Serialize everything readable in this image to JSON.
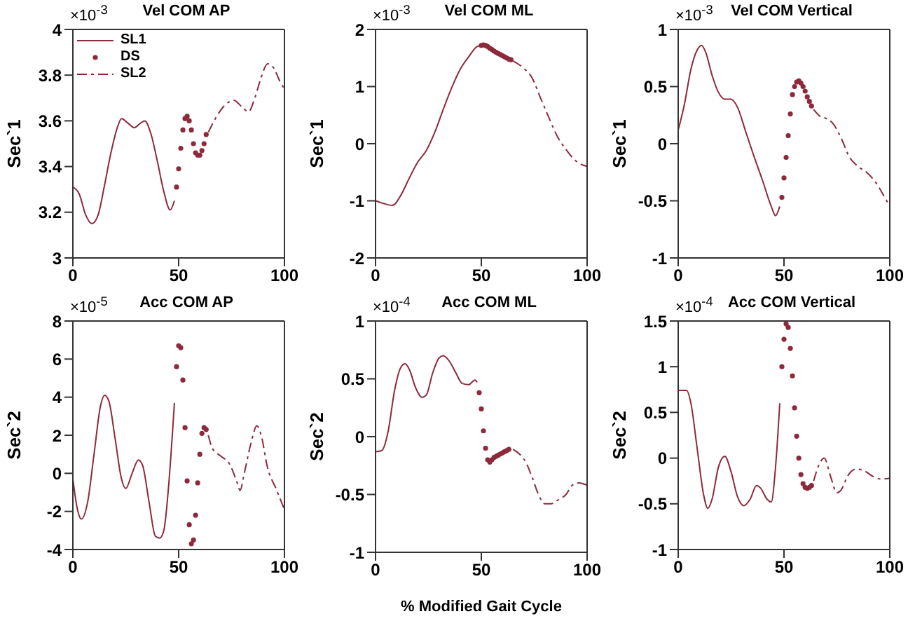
{
  "chart_data": [
    {
      "type": "line",
      "title": "Vel COM AP",
      "ylabel": "Sec`1",
      "annotations": [
        "×10$^{-3}$"
      ],
      "xlim": [
        0,
        100
      ],
      "xticks": [
        0,
        50,
        100
      ],
      "ylim": [
        3,
        4
      ],
      "yticks": [
        3,
        3.2,
        3.4,
        3.6,
        3.8,
        4
      ],
      "legend": "top left",
      "grid": false,
      "series": [
        {
          "name": "SL1",
          "type": "line",
          "color": "#8c2a3c",
          "marker": "none",
          "line_style": "solid",
          "x": [
            0,
            3,
            6,
            9,
            12,
            15,
            18,
            21,
            23,
            26,
            29,
            32,
            34,
            37,
            40,
            43,
            46,
            48
          ],
          "values": [
            3.31,
            3.28,
            3.19,
            3.15,
            3.19,
            3.32,
            3.46,
            3.57,
            3.61,
            3.59,
            3.57,
            3.59,
            3.6,
            3.54,
            3.42,
            3.29,
            3.21,
            3.25
          ]
        },
        {
          "name": "DS",
          "type": "scatter",
          "color": "#8c2a3c",
          "marker": "circle",
          "x": [
            49,
            50,
            51,
            52,
            53,
            54,
            55,
            56,
            57,
            58,
            59,
            60,
            61,
            62,
            63
          ],
          "values": [
            3.31,
            3.39,
            3.48,
            3.56,
            3.61,
            3.62,
            3.6,
            3.56,
            3.5,
            3.46,
            3.45,
            3.45,
            3.47,
            3.5,
            3.54
          ]
        },
        {
          "name": "SL2",
          "type": "line",
          "color": "#8c2a3c",
          "marker": "none",
          "line_style": "dashed",
          "x": [
            64,
            68,
            72,
            76,
            80,
            83,
            86,
            89,
            92,
            95,
            98,
            100
          ],
          "values": [
            3.55,
            3.62,
            3.67,
            3.69,
            3.66,
            3.64,
            3.7,
            3.79,
            3.85,
            3.83,
            3.77,
            3.74
          ]
        }
      ]
    },
    {
      "type": "line",
      "title": "Vel COM ML",
      "ylabel": "Sec`1",
      "annotations": [
        "×10$^{-3}$"
      ],
      "xlim": [
        0,
        100
      ],
      "xticks": [
        0,
        50,
        100
      ],
      "ylim": [
        -2,
        2
      ],
      "yticks": [
        -2,
        -1,
        0,
        1,
        2
      ],
      "legend": false,
      "grid": false,
      "series": [
        {
          "type": "line",
          "color": "#8c2a3c",
          "marker": "none",
          "line_style": "solid",
          "x": [
            0,
            4,
            8,
            12,
            16,
            20,
            24,
            28,
            32,
            36,
            40,
            44,
            48,
            50
          ],
          "values": [
            -1.0,
            -1.05,
            -1.08,
            -0.9,
            -0.6,
            -0.32,
            -0.12,
            0.2,
            0.6,
            0.98,
            1.3,
            1.52,
            1.7,
            1.72
          ]
        },
        {
          "type": "scatter",
          "color": "#8c2a3c",
          "marker": "circle",
          "x": [
            50,
            51,
            52,
            53,
            54,
            55,
            56,
            57,
            58,
            59,
            60,
            61,
            62,
            63,
            64
          ],
          "values": [
            1.72,
            1.73,
            1.72,
            1.7,
            1.67,
            1.65,
            1.62,
            1.6,
            1.58,
            1.56,
            1.54,
            1.52,
            1.5,
            1.48,
            1.47
          ]
        },
        {
          "type": "line",
          "color": "#8c2a3c",
          "marker": "none",
          "line_style": "dashed",
          "x": [
            65,
            70,
            74,
            78,
            82,
            86,
            90,
            94,
            100
          ],
          "values": [
            1.45,
            1.32,
            1.15,
            0.8,
            0.45,
            0.12,
            -0.1,
            -0.28,
            -0.4
          ]
        }
      ]
    },
    {
      "type": "line",
      "title": "Vel COM Vertical",
      "ylabel": "Sec`1",
      "annotations": [
        "×10$^{-3}$"
      ],
      "xlim": [
        0,
        100
      ],
      "xticks": [
        0,
        50,
        100
      ],
      "ylim": [
        -1,
        1
      ],
      "yticks": [
        -1,
        -0.5,
        0,
        0.5,
        1
      ],
      "legend": false,
      "grid": false,
      "series": [
        {
          "type": "line",
          "color": "#8c2a3c",
          "marker": "none",
          "line_style": "solid",
          "x": [
            0,
            3,
            6,
            9,
            11,
            13,
            16,
            19,
            22,
            25,
            28,
            32,
            36,
            40,
            44,
            46,
            48
          ],
          "values": [
            0.12,
            0.35,
            0.65,
            0.82,
            0.86,
            0.8,
            0.6,
            0.45,
            0.39,
            0.39,
            0.32,
            0.1,
            -0.12,
            -0.33,
            -0.55,
            -0.63,
            -0.55
          ]
        },
        {
          "type": "scatter",
          "color": "#8c2a3c",
          "marker": "circle",
          "x": [
            49,
            50,
            51,
            52,
            53,
            54,
            55,
            56,
            57,
            58,
            59,
            60,
            61,
            62,
            63
          ],
          "values": [
            -0.47,
            -0.3,
            -0.12,
            0.07,
            0.26,
            0.43,
            0.5,
            0.54,
            0.55,
            0.53,
            0.5,
            0.46,
            0.41,
            0.37,
            0.33
          ]
        },
        {
          "type": "line",
          "color": "#8c2a3c",
          "marker": "none",
          "line_style": "dashed",
          "x": [
            64,
            67,
            70,
            73,
            77,
            81,
            85,
            89,
            93,
            97,
            100
          ],
          "values": [
            0.3,
            0.24,
            0.22,
            0.18,
            0.05,
            -0.12,
            -0.2,
            -0.25,
            -0.33,
            -0.45,
            -0.55
          ]
        }
      ]
    },
    {
      "type": "line",
      "title": "Acc COM AP",
      "ylabel": "Sec`2",
      "annotations": [
        "×10$^{-5}$"
      ],
      "xlim": [
        0,
        100
      ],
      "xticks": [
        0,
        50,
        100
      ],
      "ylim": [
        -4,
        8
      ],
      "yticks": [
        -4,
        -2,
        0,
        2,
        4,
        6,
        8
      ],
      "legend": false,
      "grid": false,
      "series": [
        {
          "type": "line",
          "color": "#8c2a3c",
          "marker": "none",
          "line_style": "solid",
          "x": [
            0,
            2,
            4,
            7,
            10,
            13,
            15,
            17,
            20,
            23,
            25,
            28,
            31,
            33,
            36,
            39,
            41,
            43,
            45,
            47,
            48
          ],
          "values": [
            -0.3,
            -1.8,
            -2.4,
            -1.5,
            1,
            3.5,
            4.1,
            3.8,
            1.8,
            -0.3,
            -0.8,
            0,
            0.7,
            0.4,
            -1.5,
            -3.3,
            -3.4,
            -3,
            -1,
            2,
            3.7
          ]
        },
        {
          "type": "scatter",
          "color": "#8c2a3c",
          "marker": "circle",
          "x": [
            49,
            50,
            51,
            52,
            53,
            54,
            55,
            56,
            57,
            58,
            59,
            60,
            61,
            62,
            63
          ],
          "values": [
            5.6,
            6.7,
            6.6,
            4.9,
            2.4,
            -0.4,
            -2.7,
            -3.7,
            -3.5,
            -2.2,
            -0.5,
            1.0,
            2.1,
            2.4,
            2.3
          ]
        },
        {
          "type": "line",
          "color": "#8c2a3c",
          "marker": "none",
          "line_style": "dashed",
          "x": [
            64,
            66,
            70,
            74,
            78,
            79,
            81,
            84,
            87,
            89,
            92,
            96,
            100
          ],
          "values": [
            2.0,
            1.3,
            0.9,
            0.5,
            -0.6,
            -0.9,
            0,
            1.5,
            2.5,
            2.0,
            0.3,
            -0.8,
            -1.9
          ]
        }
      ]
    },
    {
      "type": "line",
      "title": "Acc COM ML",
      "ylabel": "Sec`2",
      "xlabel": "% Modified Gait Cycle",
      "annotations": [
        "×10$^{-4}$"
      ],
      "xlim": [
        0,
        100
      ],
      "xticks": [
        0,
        50,
        100
      ],
      "ylim": [
        -1,
        1
      ],
      "yticks": [
        -1,
        -0.5,
        0,
        0.5,
        1
      ],
      "legend": false,
      "grid": false,
      "series": [
        {
          "type": "line",
          "color": "#8c2a3c",
          "marker": "none",
          "line_style": "solid",
          "x": [
            0,
            3,
            6,
            9,
            12,
            14,
            16,
            19,
            22,
            24,
            27,
            30,
            32,
            35,
            38,
            41,
            44,
            47,
            48
          ],
          "values": [
            -0.13,
            -0.12,
            0.05,
            0.4,
            0.6,
            0.63,
            0.58,
            0.42,
            0.34,
            0.36,
            0.55,
            0.68,
            0.7,
            0.65,
            0.55,
            0.46,
            0.45,
            0.49,
            0.47
          ]
        },
        {
          "type": "scatter",
          "color": "#8c2a3c",
          "marker": "circle",
          "x": [
            49,
            50,
            51,
            52,
            53,
            54,
            55,
            56,
            57,
            58,
            59,
            60,
            61,
            62,
            63
          ],
          "values": [
            0.38,
            0.24,
            0.05,
            -0.1,
            -0.2,
            -0.22,
            -0.2,
            -0.18,
            -0.17,
            -0.16,
            -0.15,
            -0.14,
            -0.13,
            -0.12,
            -0.11
          ]
        },
        {
          "type": "line",
          "color": "#8c2a3c",
          "marker": "none",
          "line_style": "dashed",
          "x": [
            65,
            68,
            71,
            74,
            77,
            80,
            83,
            86,
            90,
            93,
            96,
            100
          ],
          "values": [
            -0.11,
            -0.15,
            -0.22,
            -0.35,
            -0.5,
            -0.58,
            -0.58,
            -0.55,
            -0.5,
            -0.42,
            -0.4,
            -0.42
          ]
        }
      ]
    },
    {
      "type": "line",
      "title": "Acc COM Vertical",
      "ylabel": "Sec`2",
      "annotations": [
        "×10$^{-4}$"
      ],
      "xlim": [
        0,
        100
      ],
      "xticks": [
        0,
        50,
        100
      ],
      "ylim": [
        -1,
        1.5
      ],
      "yticks": [
        -1,
        -0.5,
        0,
        0.5,
        1,
        1.5
      ],
      "legend": false,
      "grid": false,
      "series": [
        {
          "type": "line",
          "color": "#8c2a3c",
          "marker": "none",
          "line_style": "solid",
          "x": [
            0,
            4,
            6,
            9,
            12,
            14,
            16,
            19,
            22,
            25,
            28,
            31,
            34,
            37,
            39,
            42,
            44,
            46,
            48
          ],
          "values": [
            0.74,
            0.74,
            0.6,
            0.1,
            -0.4,
            -0.55,
            -0.45,
            -0.1,
            0.02,
            -0.15,
            -0.42,
            -0.52,
            -0.45,
            -0.3,
            -0.33,
            -0.45,
            -0.48,
            -0.1,
            0.6
          ]
        },
        {
          "type": "scatter",
          "color": "#8c2a3c",
          "marker": "circle",
          "x": [
            49,
            50,
            51,
            52,
            53,
            54,
            55,
            56,
            57,
            58,
            59,
            60,
            61,
            62,
            63
          ],
          "values": [
            1.0,
            1.3,
            1.47,
            1.43,
            1.2,
            0.9,
            0.55,
            0.24,
            0.0,
            -0.18,
            -0.28,
            -0.32,
            -0.33,
            -0.32,
            -0.3
          ]
        },
        {
          "type": "line",
          "color": "#8c2a3c",
          "marker": "none",
          "line_style": "dashed",
          "x": [
            64,
            67,
            69,
            72,
            75,
            77,
            80,
            84,
            88,
            92,
            96,
            100
          ],
          "values": [
            -0.25,
            -0.05,
            0.0,
            -0.2,
            -0.38,
            -0.35,
            -0.2,
            -0.12,
            -0.14,
            -0.2,
            -0.23,
            -0.22
          ]
        }
      ]
    }
  ]
}
